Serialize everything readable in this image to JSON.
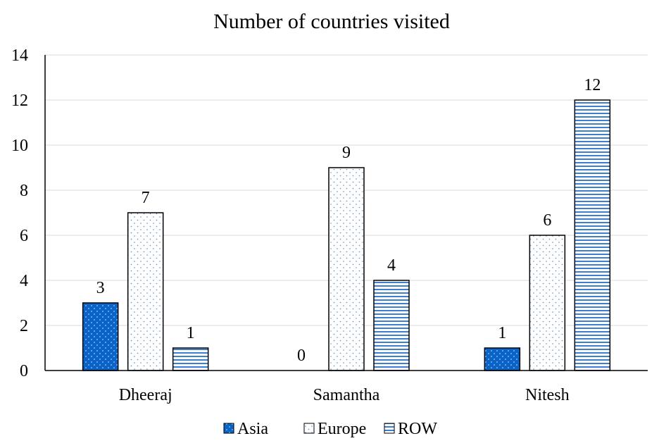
{
  "chart_data": {
    "type": "bar",
    "title": "Number of countries visited",
    "categories": [
      "Dheeraj",
      "Samantha",
      "Nitesh"
    ],
    "series": [
      {
        "name": "Asia",
        "values": [
          3,
          0,
          1
        ],
        "pattern": "dots-on-blue",
        "color": "#0a64c8"
      },
      {
        "name": "Europe",
        "values": [
          7,
          9,
          6
        ],
        "pattern": "dots-on-white",
        "color": "#4f8fcf"
      },
      {
        "name": "ROW",
        "values": [
          1,
          4,
          12
        ],
        "pattern": "horizontal-stripes",
        "color": "#3b7fd0"
      }
    ],
    "ylim": [
      0,
      14
    ],
    "yticks": [
      0,
      2,
      4,
      6,
      8,
      10,
      12,
      14
    ],
    "grid": true,
    "legend": "bottom",
    "data_labels": true
  }
}
